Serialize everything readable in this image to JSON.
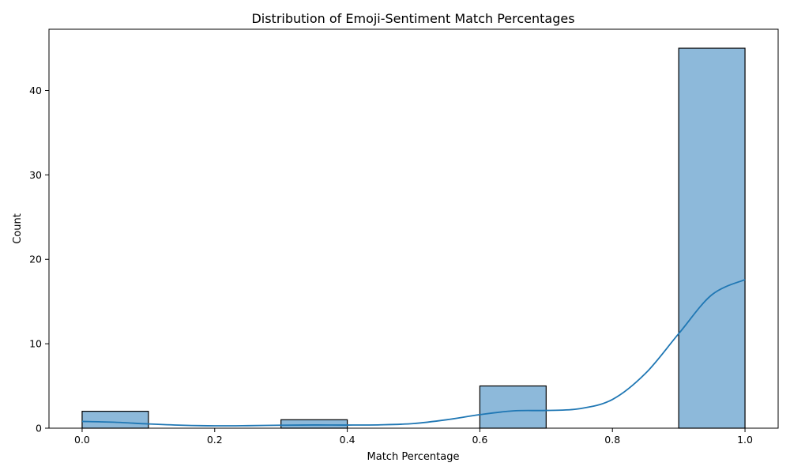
{
  "chart_data": {
    "type": "bar",
    "title": "Distribution of Emoji-Sentiment Match Percentages",
    "xlabel": "Match Percentage",
    "ylabel": "Count",
    "xlim": [
      -0.05,
      1.05
    ],
    "ylim": [
      0,
      47.25
    ],
    "xticks": [
      0.0,
      0.2,
      0.4,
      0.6,
      0.8,
      1.0
    ],
    "xtick_labels": [
      "0.0",
      "0.2",
      "0.4",
      "0.6",
      "0.8",
      "1.0"
    ],
    "yticks": [
      0,
      10,
      20,
      30,
      40
    ],
    "ytick_labels": [
      "0",
      "10",
      "20",
      "30",
      "40"
    ],
    "bins": [
      {
        "x0": 0.0,
        "x1": 0.1,
        "count": 2
      },
      {
        "x0": 0.1,
        "x1": 0.2,
        "count": 0
      },
      {
        "x0": 0.2,
        "x1": 0.3,
        "count": 0
      },
      {
        "x0": 0.3,
        "x1": 0.4,
        "count": 1
      },
      {
        "x0": 0.4,
        "x1": 0.5,
        "count": 0
      },
      {
        "x0": 0.5,
        "x1": 0.6,
        "count": 0
      },
      {
        "x0": 0.6,
        "x1": 0.7,
        "count": 5
      },
      {
        "x0": 0.7,
        "x1": 0.8,
        "count": 0
      },
      {
        "x0": 0.8,
        "x1": 0.9,
        "count": 0
      },
      {
        "x0": 0.9,
        "x1": 1.0,
        "count": 45
      }
    ],
    "kde": {
      "x": [
        0.0,
        0.05,
        0.1,
        0.15,
        0.2,
        0.25,
        0.3,
        0.35,
        0.4,
        0.45,
        0.5,
        0.55,
        0.6,
        0.65,
        0.7,
        0.75,
        0.8,
        0.85,
        0.9,
        0.95,
        1.0
      ],
      "y": [
        0.8,
        0.7,
        0.5,
        0.35,
        0.28,
        0.3,
        0.35,
        0.38,
        0.37,
        0.4,
        0.55,
        1.0,
        1.6,
        2.05,
        2.1,
        2.3,
        3.4,
        6.5,
        11.2,
        15.8,
        17.6
      ]
    },
    "colors": {
      "bar_fill": "#8db9da",
      "bar_edge": "#000000",
      "kde_line": "#1f77b4"
    },
    "grid": false
  }
}
